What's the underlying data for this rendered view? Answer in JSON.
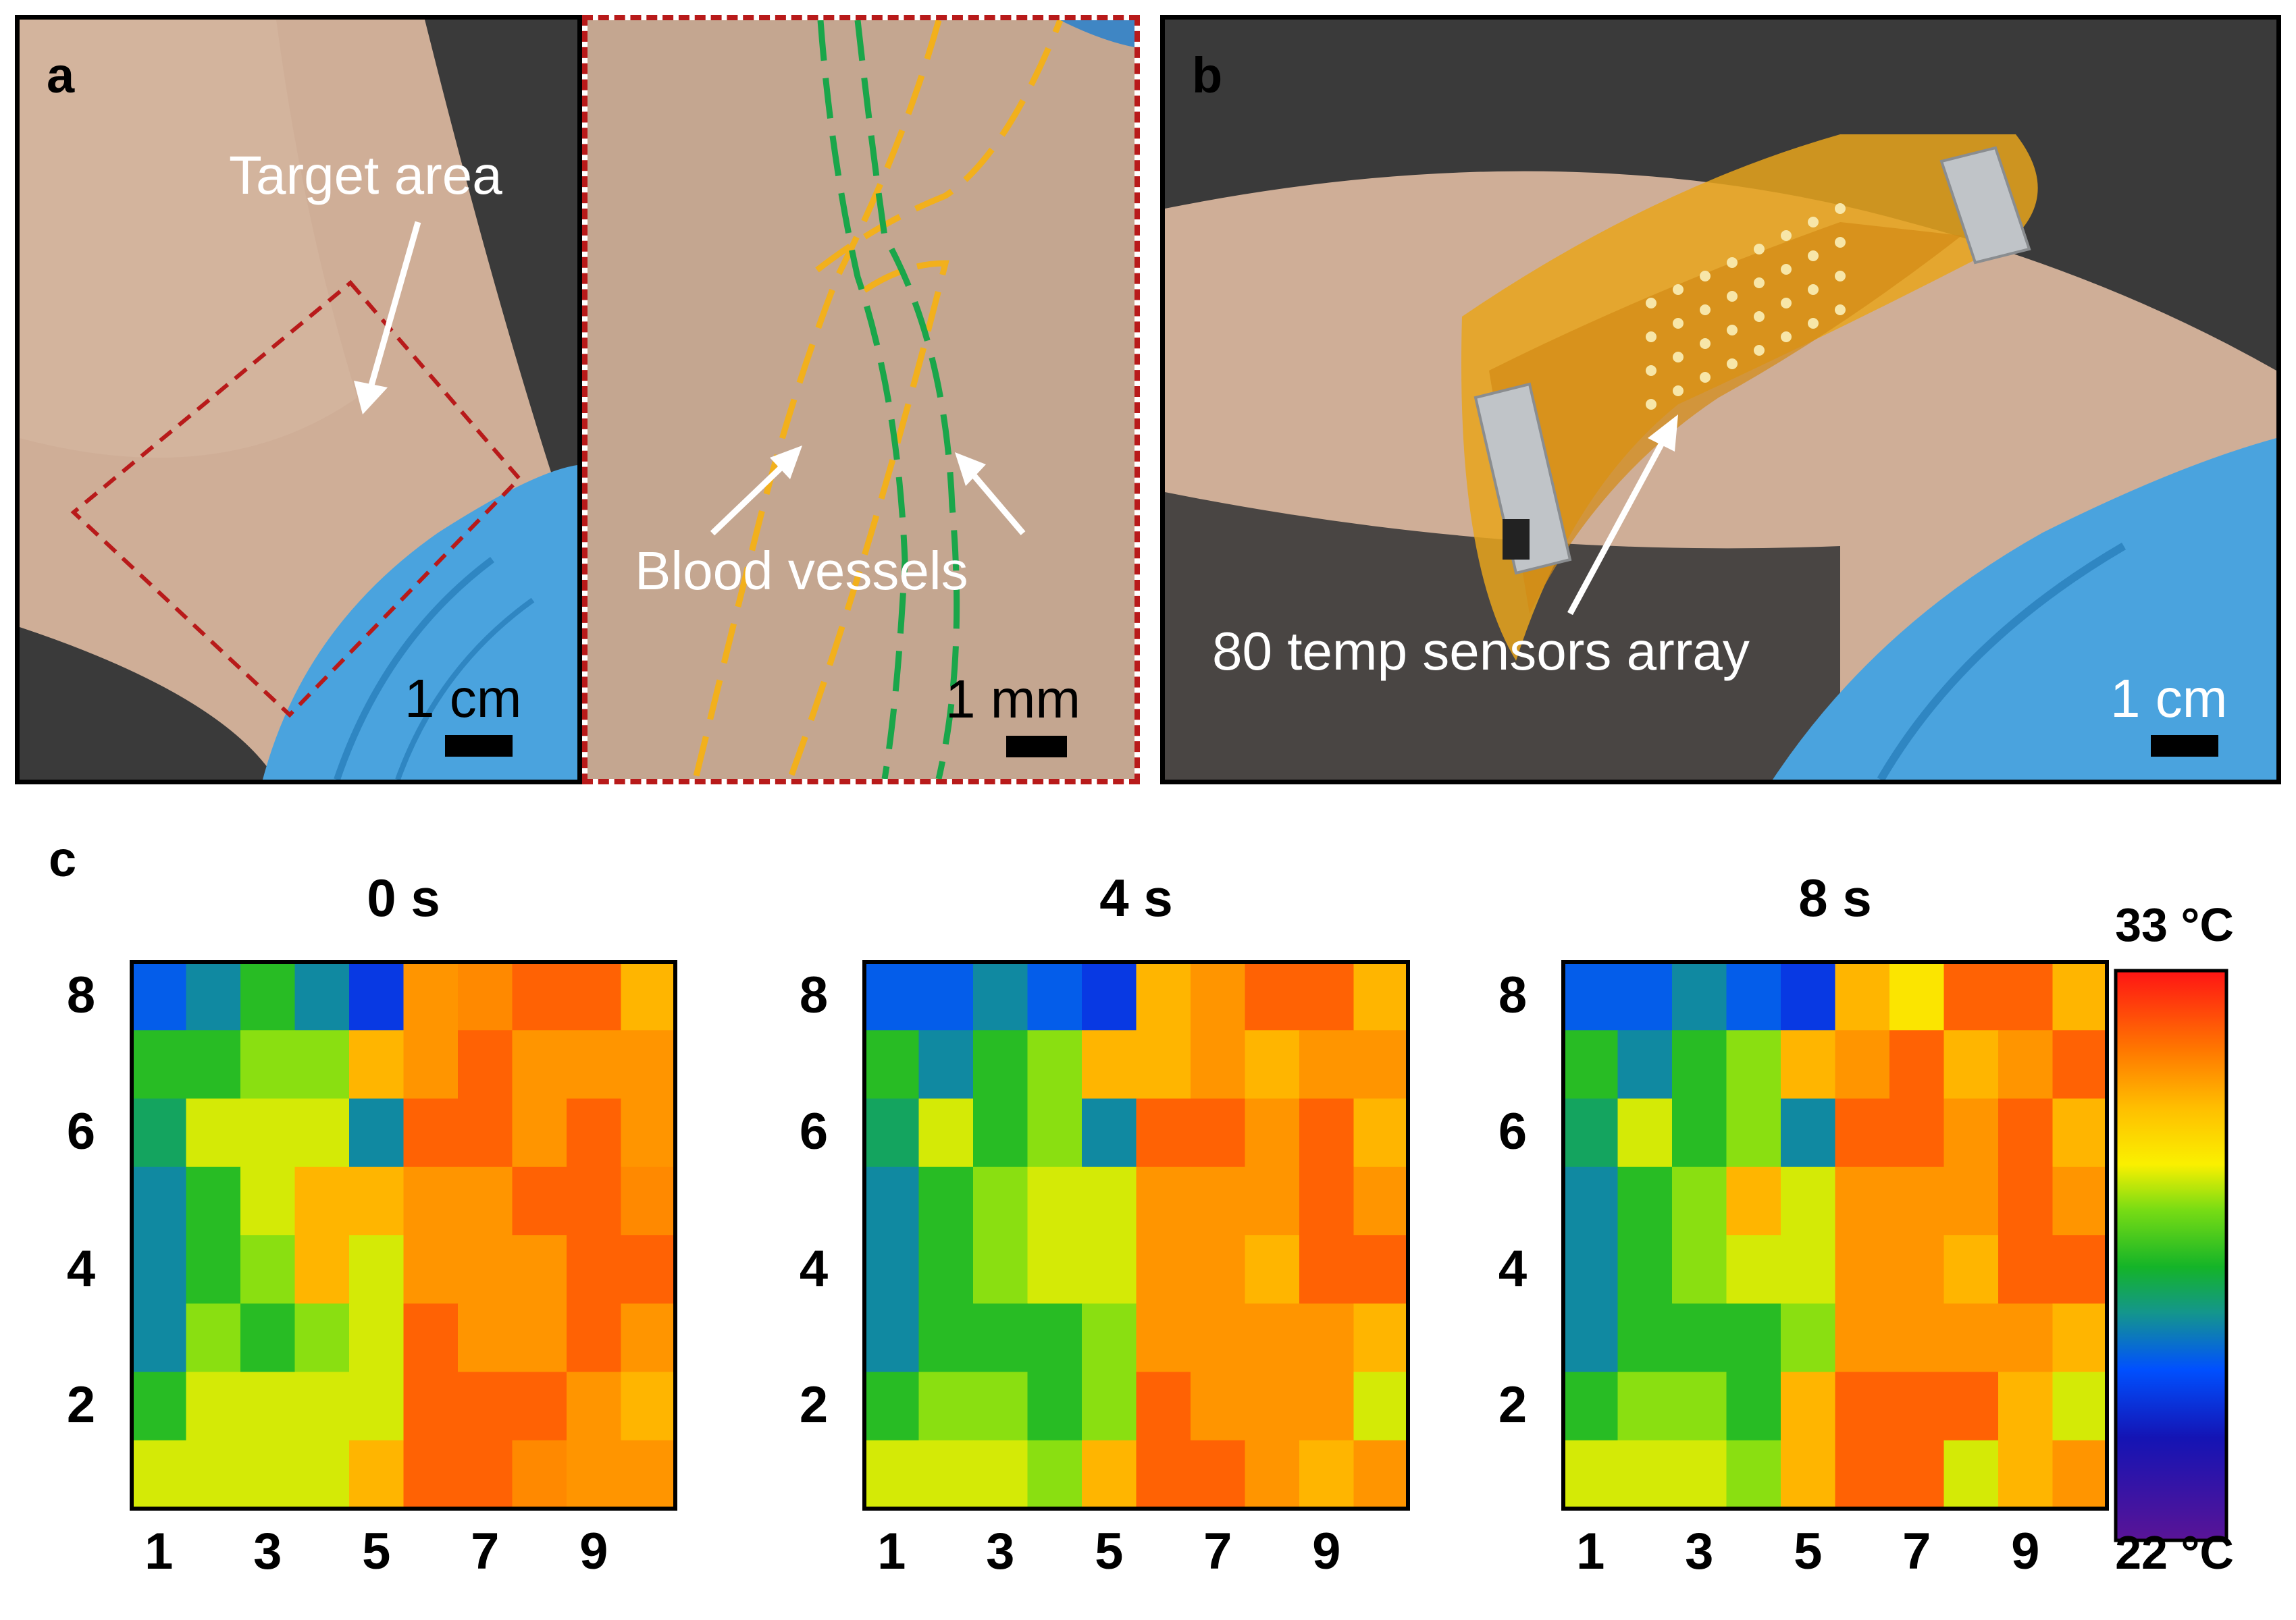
{
  "panels": {
    "a": {
      "letter": "a",
      "target_label": "Target area",
      "scale_label": "1 cm",
      "inset_label": "Blood vessels",
      "inset_scale_label": "1 mm"
    },
    "b": {
      "letter": "b",
      "array_label": "80 temp sensors array",
      "scale_label": "1 cm"
    },
    "c": {
      "letter": "c"
    }
  },
  "colors": {
    "frame": "#000000",
    "inset_frame": "#b81a1a",
    "target_box": "#b81a1a",
    "vessel_orange": "#f2b01c",
    "vessel_green": "#1aa64a",
    "skin": "#cfb39e",
    "background_dark": "#3a3a3a",
    "glove": "#4aa3de",
    "kapton": "#e8a51c"
  },
  "chart_data": [
    {
      "type": "heatmap",
      "title": "0 s",
      "x_ticks": [
        "1",
        "3",
        "5",
        "7",
        "9"
      ],
      "y_ticks": [
        "2",
        "4",
        "6",
        "8"
      ],
      "columns": 10,
      "rows": 8,
      "color_range": [
        22,
        33
      ],
      "values_top_row_first": [
        [
          25.5,
          26.2,
          27.5,
          26.2,
          24.8,
          31.0,
          31.2,
          31.8,
          31.8,
          30.5
        ],
        [
          27.5,
          27.5,
          28.5,
          28.5,
          30.5,
          31.0,
          31.8,
          31.0,
          31.0,
          31.0
        ],
        [
          26.8,
          29.0,
          29.0,
          29.0,
          26.2,
          31.8,
          31.8,
          31.0,
          31.8,
          31.0
        ],
        [
          26.2,
          27.5,
          29.0,
          30.5,
          30.5,
          31.0,
          31.0,
          31.8,
          31.8,
          31.2
        ],
        [
          26.2,
          27.5,
          28.5,
          30.5,
          29.0,
          31.0,
          31.0,
          31.0,
          31.8,
          31.8
        ],
        [
          26.2,
          28.5,
          27.5,
          28.5,
          29.0,
          31.8,
          31.0,
          31.0,
          31.8,
          31.0
        ],
        [
          27.5,
          29.0,
          29.0,
          29.0,
          29.0,
          31.8,
          31.8,
          31.8,
          31.0,
          30.5
        ],
        [
          29.0,
          29.0,
          29.0,
          29.0,
          30.5,
          31.8,
          31.8,
          31.2,
          31.0,
          31.0
        ]
      ]
    },
    {
      "type": "heatmap",
      "title": "4 s",
      "x_ticks": [
        "1",
        "3",
        "5",
        "7",
        "9"
      ],
      "y_ticks": [
        "2",
        "4",
        "6",
        "8"
      ],
      "columns": 10,
      "rows": 8,
      "color_range": [
        22,
        33
      ],
      "values_top_row_first": [
        [
          25.5,
          25.5,
          26.2,
          25.5,
          24.8,
          30.5,
          31.0,
          31.8,
          31.8,
          30.5
        ],
        [
          27.5,
          26.2,
          27.5,
          28.5,
          30.5,
          30.5,
          31.0,
          30.5,
          31.0,
          31.0
        ],
        [
          26.8,
          29.0,
          27.5,
          28.5,
          26.2,
          31.8,
          31.8,
          31.0,
          31.8,
          30.5
        ],
        [
          26.2,
          27.5,
          28.5,
          29.0,
          29.0,
          31.0,
          31.0,
          31.0,
          31.8,
          31.0
        ],
        [
          26.2,
          27.5,
          28.5,
          29.0,
          29.0,
          31.0,
          31.0,
          30.5,
          31.8,
          31.8
        ],
        [
          26.2,
          27.5,
          27.5,
          27.5,
          28.5,
          31.0,
          31.0,
          31.0,
          31.0,
          30.5
        ],
        [
          27.5,
          28.5,
          28.5,
          27.5,
          28.5,
          31.8,
          31.0,
          31.0,
          31.0,
          29.0
        ],
        [
          29.0,
          29.0,
          29.0,
          28.5,
          30.5,
          31.8,
          31.8,
          31.0,
          30.5,
          31.0
        ]
      ]
    },
    {
      "type": "heatmap",
      "title": "8 s",
      "x_ticks": [
        "1",
        "3",
        "5",
        "7",
        "9"
      ],
      "y_ticks": [
        "2",
        "4",
        "6",
        "8"
      ],
      "columns": 10,
      "rows": 8,
      "color_range": [
        22,
        33
      ],
      "values_top_row_first": [
        [
          25.5,
          25.5,
          26.2,
          25.5,
          24.8,
          30.5,
          29.5,
          31.8,
          31.8,
          30.5
        ],
        [
          27.5,
          26.2,
          27.5,
          28.5,
          30.5,
          31.0,
          31.8,
          30.5,
          31.0,
          31.8
        ],
        [
          26.8,
          29.0,
          27.5,
          28.5,
          26.2,
          31.8,
          31.8,
          31.0,
          31.8,
          30.5
        ],
        [
          26.2,
          27.5,
          28.5,
          30.5,
          29.0,
          31.0,
          31.0,
          31.0,
          31.8,
          31.0
        ],
        [
          26.2,
          27.5,
          28.5,
          29.0,
          29.0,
          31.0,
          31.0,
          30.5,
          31.8,
          31.8
        ],
        [
          26.2,
          27.5,
          27.5,
          27.5,
          28.5,
          31.0,
          31.0,
          31.0,
          31.0,
          30.5
        ],
        [
          27.5,
          28.5,
          28.5,
          27.5,
          30.5,
          31.8,
          31.8,
          31.8,
          30.5,
          29.0
        ],
        [
          29.0,
          29.0,
          29.0,
          28.5,
          30.5,
          31.8,
          31.8,
          29.0,
          30.5,
          31.0
        ]
      ]
    }
  ],
  "colorbar": {
    "max_label": "33 °C",
    "min_label": "22 °C",
    "min": 22,
    "max": 33
  }
}
